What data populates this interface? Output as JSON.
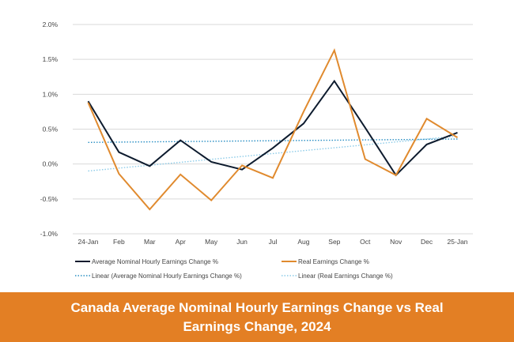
{
  "chart_data": {
    "type": "line",
    "title": "Canada Average Nominal Hourly Earnings Change vs Real Earnings Change, 2024",
    "categories": [
      "24-Jan",
      "Feb",
      "Mar",
      "Apr",
      "May",
      "Jun",
      "Jul",
      "Aug",
      "Sep",
      "Oct",
      "Nov",
      "Dec",
      "25-Jan"
    ],
    "ylim": [
      -1.0,
      2.0
    ],
    "yticks": [
      -1.0,
      -0.5,
      0.0,
      0.5,
      1.0,
      1.5,
      2.0
    ],
    "ytick_labels": [
      "-1.0%",
      "-0.5%",
      "0.0%",
      "0.5%",
      "1.0%",
      "1.5%",
      "2.0%"
    ],
    "grid": true,
    "legend_position": "bottom",
    "series": [
      {
        "name": "Average Nominal Hourly Earnings Change %",
        "color": "#0d1b2e",
        "style": "solid",
        "values": [
          0.9,
          0.17,
          -0.03,
          0.34,
          0.03,
          -0.08,
          0.23,
          0.58,
          1.19,
          0.52,
          -0.16,
          0.28,
          0.45
        ]
      },
      {
        "name": "Real Earnings Change %",
        "color": "#e08a2e",
        "style": "solid",
        "values": [
          0.88,
          -0.14,
          -0.65,
          -0.15,
          -0.52,
          -0.02,
          -0.2,
          0.75,
          1.63,
          0.07,
          -0.16,
          0.65,
          0.38
        ]
      },
      {
        "name": "Linear (Average Nominal Hourly Earnings Change %)",
        "color": "#2a8fc4",
        "style": "dotted",
        "values": [
          0.31,
          0.314,
          0.318,
          0.322,
          0.326,
          0.33,
          0.334,
          0.338,
          0.342,
          0.346,
          0.35,
          0.354,
          0.358
        ]
      },
      {
        "name": "Linear (Real Earnings Change %)",
        "color": "#8ccbe8",
        "style": "dotted",
        "values": [
          -0.1,
          -0.058,
          -0.017,
          0.025,
          0.067,
          0.108,
          0.15,
          0.192,
          0.233,
          0.275,
          0.317,
          0.358,
          0.4
        ]
      }
    ]
  },
  "banner": {
    "line1": "Canada Average Nominal Hourly Earnings Change vs Real",
    "line2": "Earnings Change, 2024",
    "background": "#e37f24"
  }
}
